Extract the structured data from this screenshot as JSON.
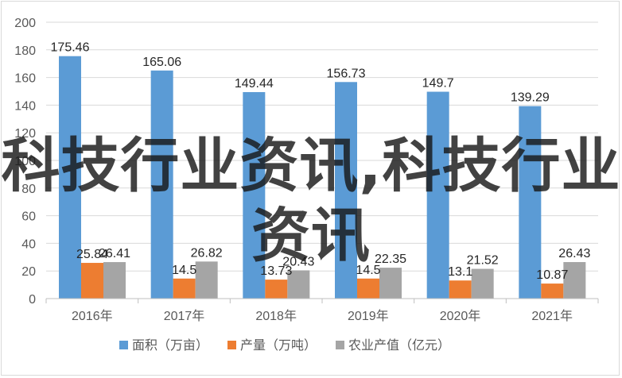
{
  "chart_data": {
    "type": "bar",
    "categories": [
      "2016年",
      "2017年",
      "2018年",
      "2019年",
      "2020年",
      "2021年"
    ],
    "series": [
      {
        "name": "面积（万亩）",
        "color": "#5B9BD5",
        "values": [
          175.46,
          165.06,
          149.44,
          156.73,
          149.7,
          139.29
        ]
      },
      {
        "name": "产量（万吨）",
        "color": "#ED7D31",
        "values": [
          25.84,
          14.5,
          13.73,
          14.5,
          13.1,
          10.87
        ]
      },
      {
        "name": "农业产值（亿元）",
        "color": "#A5A5A5",
        "values": [
          26.41,
          26.82,
          20.43,
          22.35,
          21.52,
          26.43
        ]
      }
    ],
    "ylim": [
      0,
      200
    ],
    "yticks": [
      0,
      20,
      40,
      60,
      80,
      100,
      120,
      140,
      160,
      180,
      200
    ],
    "grid": true,
    "legend_position": "bottom"
  },
  "watermark": "科技行业资讯,科技行业资讯"
}
